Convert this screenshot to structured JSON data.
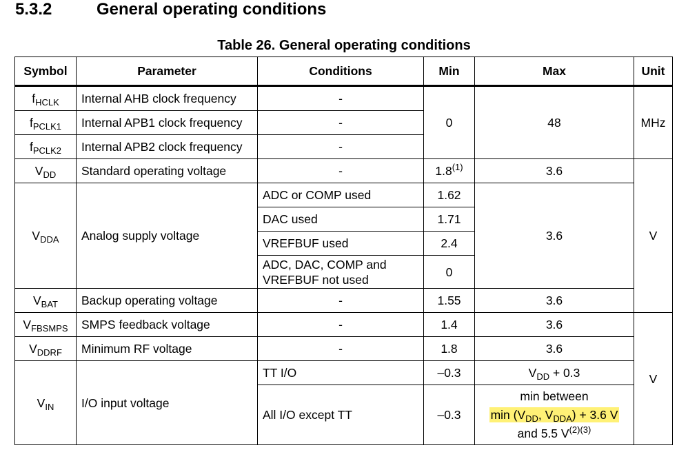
{
  "section": {
    "number": "5.3.2",
    "title": "General operating conditions"
  },
  "table_title": "Table 26. General operating conditions",
  "headers": [
    "Symbol",
    "Parameter",
    "Conditions",
    "Min",
    "Max",
    "Unit"
  ],
  "rows": [
    {
      "symbol_main": "f",
      "symbol_sub": "HCLK",
      "parameter": "Internal AHB clock frequency",
      "conditions": "-"
    },
    {
      "symbol_main": "f",
      "symbol_sub": "PCLK1",
      "parameter": "Internal APB1 clock frequency",
      "conditions": "-"
    },
    {
      "symbol_main": "f",
      "symbol_sub": "PCLK2",
      "parameter": "Internal APB2 clock frequency",
      "conditions": "-"
    },
    {
      "symbol_main": "V",
      "symbol_sub": "DD",
      "parameter": "Standard operating voltage",
      "conditions": "-",
      "min": "1.8",
      "min_note": "(1)",
      "max": "3.6"
    },
    {
      "symbol_main": "V",
      "symbol_sub": "DDA",
      "parameter": "Analog supply voltage",
      "max": "3.6",
      "sub_rows": [
        {
          "conditions": "ADC or COMP used",
          "min": "1.62"
        },
        {
          "conditions": "DAC used",
          "min": "1.71"
        },
        {
          "conditions": "VREFBUF used",
          "min": "2.4"
        },
        {
          "conditions_line1": "ADC, DAC, COMP and",
          "conditions_line2": "VREFBUF not used",
          "min": "0"
        }
      ]
    },
    {
      "symbol_main": "V",
      "symbol_sub": "BAT",
      "parameter": "Backup operating voltage",
      "conditions": "-",
      "min": "1.55",
      "max": "3.6"
    },
    {
      "symbol_main": "V",
      "symbol_sub": "FBSMPS",
      "parameter": "SMPS feedback voltage",
      "conditions": "-",
      "min": "1.4",
      "max": "3.6"
    },
    {
      "symbol_main": "V",
      "symbol_sub": "DDRF",
      "parameter": "Minimum RF voltage",
      "conditions": "-",
      "min": "1.8",
      "max": "3.6"
    },
    {
      "symbol_main": "V",
      "symbol_sub": "IN",
      "parameter": "I/O input voltage",
      "sub_rows": [
        {
          "conditions": "TT I/O",
          "min": "–0.3",
          "max_main": "V",
          "max_sub": "DD",
          "max_suffix": " + 0.3"
        },
        {
          "conditions": "All I/O except TT",
          "min": "–0.3",
          "max_line1": "min between",
          "max_line2_a": "min (V",
          "max_line2_sub1": "DD",
          "max_line2_b": ", V",
          "max_line2_sub2": "DDA",
          "max_line2_c": ") + 3.6 V",
          "max_line3": "and 5.5 V",
          "max_line3_note": "(2)(3)"
        }
      ]
    }
  ],
  "merged": {
    "clock_min": "0",
    "clock_max": "48",
    "clock_unit": "MHz",
    "vgroup1_unit": "V",
    "vgroup2_unit": "V"
  },
  "colors": {
    "highlight": "#fff176",
    "border": "#000000"
  }
}
